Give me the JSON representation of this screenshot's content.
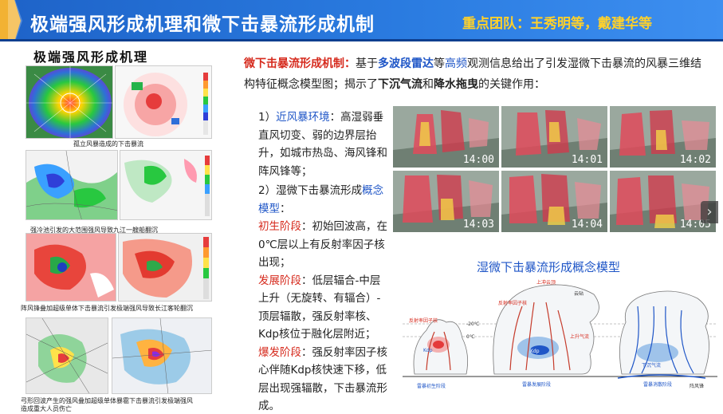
{
  "header": {
    "title": "极端强风形成机理和微下击暴流形成机制",
    "team": "重点团队：王秀明等，戴建华等"
  },
  "left": {
    "title": "极端强风形成机理",
    "captions": [
      "孤立风暴造成的下击暴流",
      "强冷池引发的大范围强风导致九江一艘船翻沉",
      "阵风锋叠加超级单体下击暴流引发极端强风导致长江客轮翻沉",
      "弓形回波产生的强风叠加超级单体暴雹下击暴流引发极端强风",
      "造成重大人员伤亡"
    ]
  },
  "intro": {
    "p1_red": "微下击暴流形成机制：",
    "p1_a": "基于",
    "p1_blue1": "多波段雷达",
    "p1_b": "等",
    "p1_blue2": "高频",
    "p1_c": "观测信息给出了引发湿微下击暴流的风暴三维结构特征概念模型图；揭示了",
    "p1_bold1": "下沉气流",
    "p1_d": "和",
    "p1_bold2": "降水拖曳",
    "p1_e": "的关键作用："
  },
  "body": {
    "s1_num": "1）",
    "s1_label": "近风暴环境",
    "s1_text": "：高湿弱垂直风切变、弱的边界层抬升，如城市热岛、海风锋和阵风锋等；",
    "s2_num": "2）湿微下击暴流形成",
    "s2_label": "概念模型",
    "s2_colon": "：",
    "stage1_label": "初生阶段",
    "stage1_text": "：初始回波高，在0℃层以上有反射率因子核出现；",
    "stage2_label": "发展阶段",
    "stage2_text": "：低层辐合-中层上升（无旋转、有辐合）-顶层辐散，强反射率核、Kdp核位于融化层附近；",
    "stage3_label": "爆发阶段",
    "stage3_text": "：强反射率因子核心伴随Kdp核快速下移，低层出现强辐散，下击暴流形成。"
  },
  "timestamps": [
    "14:00",
    "14:01",
    "14:02",
    "14:03",
    "14:04",
    "14:05"
  ],
  "concept": {
    "title": "湿微下击暴流形成概念模型",
    "labels": {
      "overshoot": "上冲云顶",
      "anvil": "云砧",
      "refl_core": "反射率因子核",
      "updraft": "上升气流",
      "downdraft": "下沉气流",
      "kdp": "Kdp",
      "zero_c": "0℃",
      "minus20": "-20℃",
      "stage1": "雷暴初生阶段",
      "stage2": "雷暴发展阶段",
      "stage3": "雷暴消散阶段",
      "gust": "阵风锋"
    }
  },
  "colors": {
    "header_blue": "#2a7be0",
    "team_yellow": "#ffd12a",
    "accent_red": "#d62b1e",
    "accent_blue": "#1f56c7"
  }
}
